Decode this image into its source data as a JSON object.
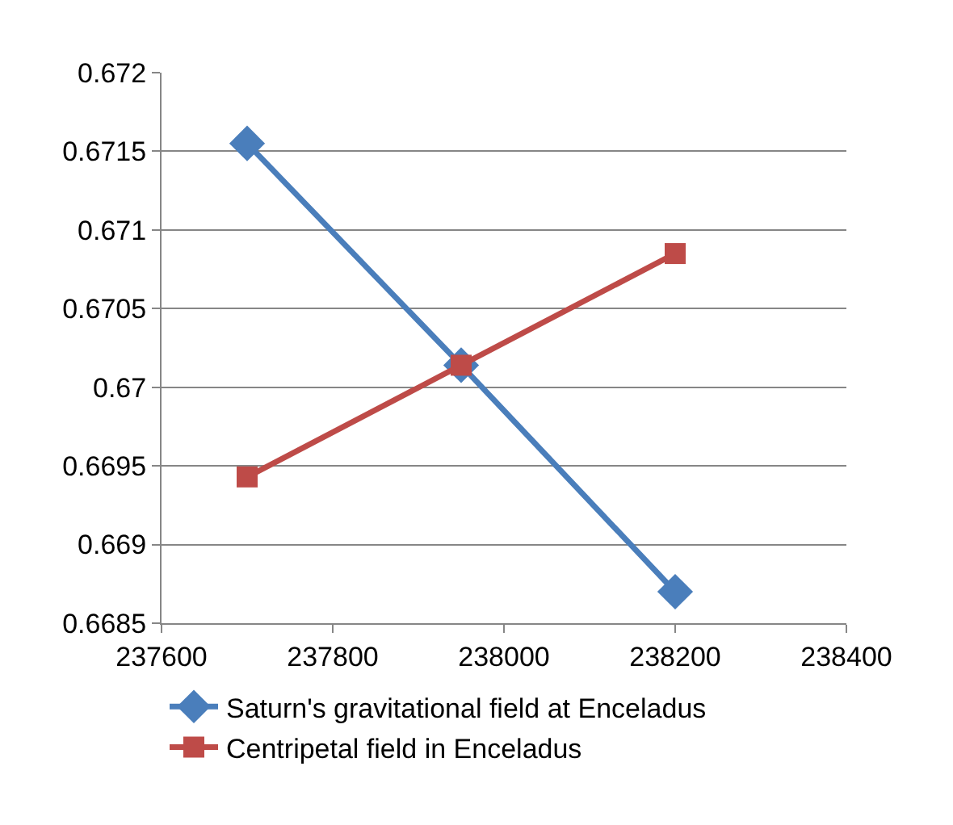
{
  "chart_data": {
    "type": "line",
    "x": [
      237700,
      237950,
      238200
    ],
    "series": [
      {
        "name": "Saturn's gravitational field at Enceladus",
        "color": "#4a7ebb",
        "values": [
          0.67155,
          0.67014,
          0.6687
        ],
        "marker": "diamond"
      },
      {
        "name": "Centripetal field in Enceladus",
        "color": "#be4b48",
        "values": [
          0.66943,
          0.67014,
          0.67085
        ],
        "marker": "square"
      }
    ],
    "xlim": [
      237600,
      238400
    ],
    "xticks": [
      237600,
      237800,
      238000,
      238200,
      238400
    ],
    "ylim": [
      0.6685,
      0.672
    ],
    "yticks": [
      0.6685,
      0.669,
      0.6695,
      0.67,
      0.6705,
      0.671,
      0.6715,
      0.672
    ],
    "grid": "y",
    "legend": "bottom",
    "line_style": "solid"
  }
}
